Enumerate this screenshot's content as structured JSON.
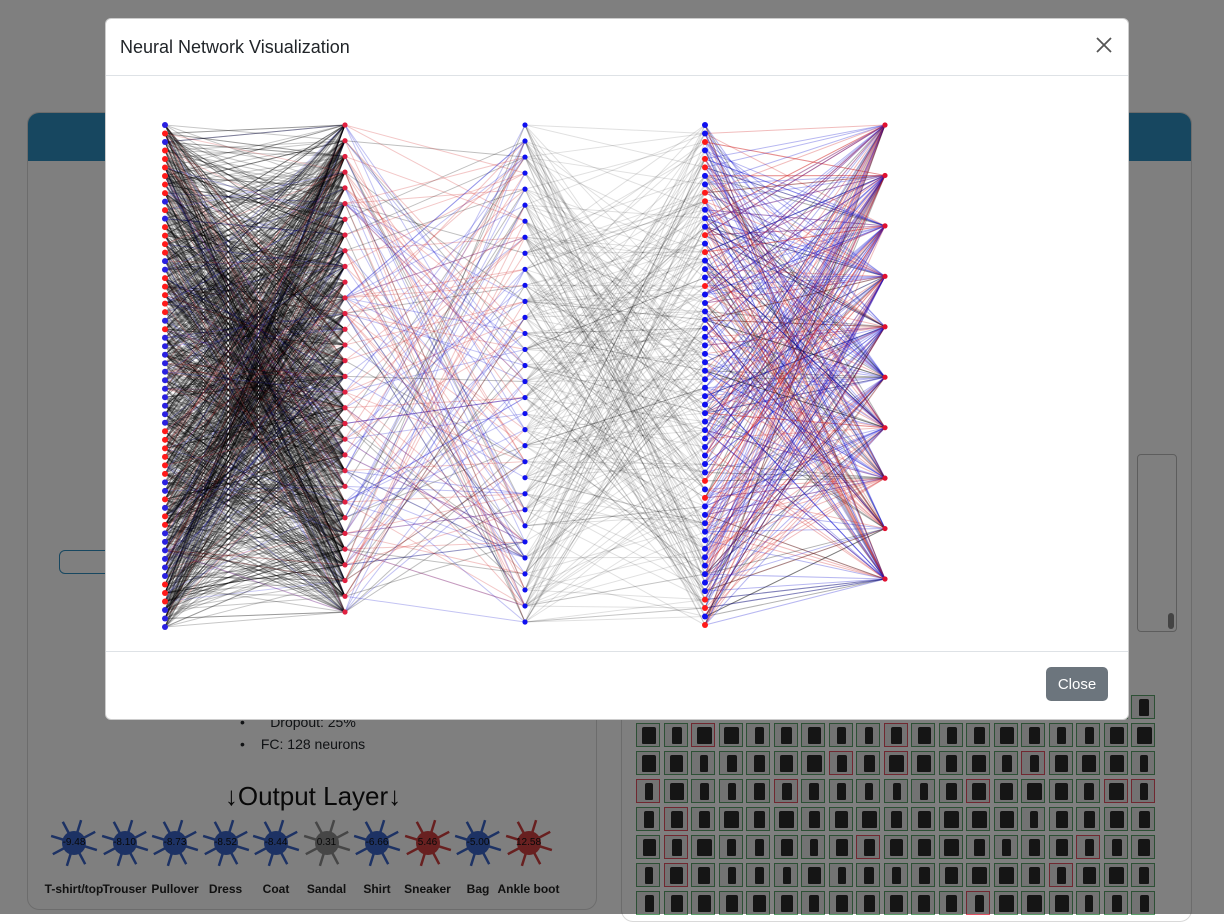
{
  "modal": {
    "title": "Neural Network Visualization",
    "close_button_label": "Close",
    "close_icon": "close-icon"
  },
  "background": {
    "architecture_items": [
      "Dropout: 25%",
      "FC: 128 neurons"
    ],
    "output_layer_title": "↓Output Layer↓",
    "output_neurons": [
      {
        "label": "T-shirt/top",
        "value": "-9.48",
        "color": "#3a64c8"
      },
      {
        "label": "Trouser",
        "value": "-8.10",
        "color": "#3a64c8"
      },
      {
        "label": "Pullover",
        "value": "-8.73",
        "color": "#3a64c8"
      },
      {
        "label": "Dress",
        "value": "-8.52",
        "color": "#3a64c8"
      },
      {
        "label": "Coat",
        "value": "-8.44",
        "color": "#3a64c8"
      },
      {
        "label": "Sandal",
        "value": "0.31",
        "color": "#8c8c8c"
      },
      {
        "label": "Shirt",
        "value": "-6.66",
        "color": "#3a64c8"
      },
      {
        "label": "Sneaker",
        "value": "5.46",
        "color": "#d04040"
      },
      {
        "label": "Bag",
        "value": "-5.00",
        "color": "#3a64c8"
      },
      {
        "label": "Ankle boot",
        "value": "12.58",
        "color": "#d04040"
      }
    ]
  },
  "network": {
    "layer_neuron_counts": [
      60,
      32,
      32,
      60,
      10
    ],
    "layer_colors": [
      "mixed-red-blue",
      "red",
      "blue",
      "mixed-blue-red",
      "red"
    ],
    "edge_colors": {
      "positive": "#d02020",
      "negative": "#1010d0",
      "neutral": "#000000"
    }
  }
}
